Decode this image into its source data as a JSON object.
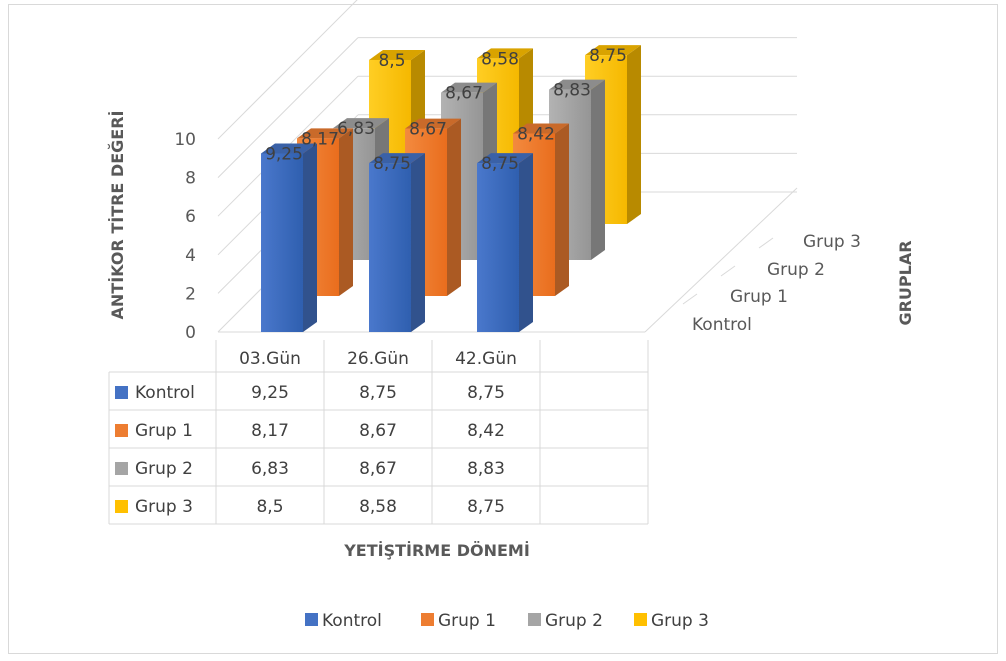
{
  "chart_data": {
    "type": "bar",
    "subtype": "3d-clustered-column-with-data-table",
    "title": "",
    "ylabel": "ANTİKOR TİTRE DEĞERİ",
    "xlabel": "YETİŞTİRME DÖNEMİ",
    "zlabel": "GRUPLAR",
    "ylim": [
      0,
      10
    ],
    "yticks": [
      "0",
      "2",
      "4",
      "6",
      "8",
      "10"
    ],
    "categories": [
      "03.Gün",
      "26.Gün",
      "42.Gün"
    ],
    "depth_labels": [
      "Kontrol",
      "Grup 1",
      "Grup 2",
      "Grup 3"
    ],
    "series": [
      {
        "name": "Kontrol",
        "color": "#4472c4",
        "values": [
          9.25,
          8.75,
          8.75
        ],
        "labels": [
          "9,25",
          "8,75",
          "8,75"
        ]
      },
      {
        "name": "Grup 1",
        "color": "#ed7d31",
        "values": [
          8.17,
          8.67,
          8.42
        ],
        "labels": [
          "8,17",
          "8,67",
          "8,42"
        ]
      },
      {
        "name": "Grup 2",
        "color": "#a5a5a5",
        "values": [
          6.83,
          8.67,
          8.83
        ],
        "labels": [
          "6,83",
          "8,67",
          "8,83"
        ]
      },
      {
        "name": "Grup 3",
        "color": "#ffc000",
        "values": [
          8.5,
          8.58,
          8.75
        ],
        "labels": [
          "8,5",
          "8,58",
          "8,75"
        ]
      }
    ],
    "grid": true,
    "legend": "bottom",
    "data_table": true
  }
}
